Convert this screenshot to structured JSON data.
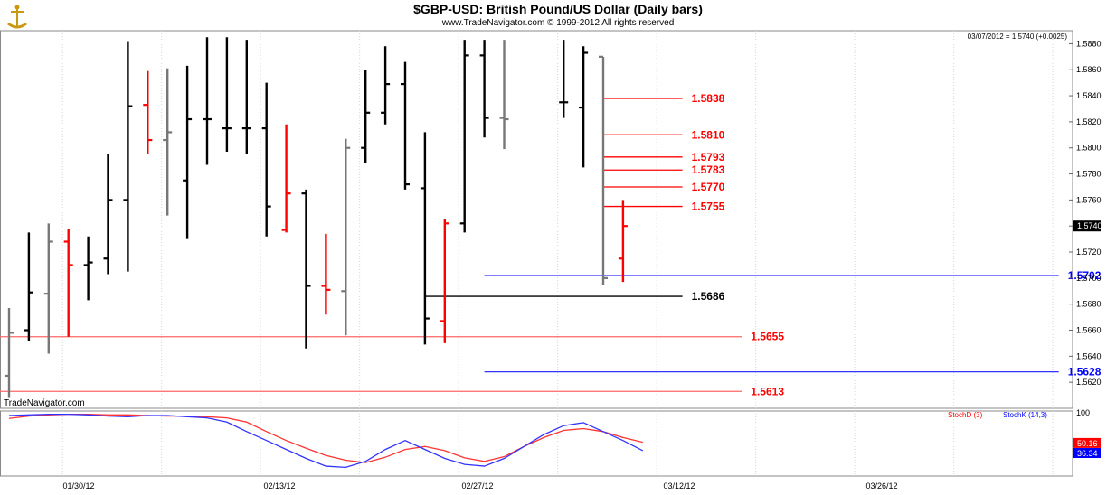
{
  "header": {
    "title": "$GBP-USD:  British Pound/US Dollar  (Daily bars)",
    "copyright": "www.TradeNavigator.com © 1999-2012 All rights reserved",
    "last_value_note": "03/07/2012 = 1.5740 (+0.0025)",
    "watermark": "TradeNavigator.com"
  },
  "chart_data": [
    {
      "type": "ohlc",
      "title": "$GBP-USD:  British Pound/US Dollar  (Daily bars)",
      "ylim": [
        1.56,
        1.589
      ],
      "y_ticks": [
        "1.5880",
        "1.5860",
        "1.5840",
        "1.5820",
        "1.5800",
        "1.5780",
        "1.5760",
        "1.5740",
        "1.5720",
        "1.5700",
        "1.5680",
        "1.5660",
        "1.5640",
        "1.5620"
      ],
      "current_price_label": "1.5740",
      "x_ticks": [
        "01/30/12",
        "02/13/12",
        "02/27/12",
        "03/12/12",
        "03/26/12"
      ],
      "bars": [
        {
          "x": 0,
          "o": 1.5625,
          "h": 1.5677,
          "l": 1.5608,
          "c": 1.5658,
          "color": "gray"
        },
        {
          "x": 1,
          "o": 1.566,
          "h": 1.5735,
          "l": 1.5652,
          "c": 1.5689,
          "color": "black"
        },
        {
          "x": 2,
          "o": 1.5688,
          "h": 1.5742,
          "l": 1.5642,
          "c": 1.5728,
          "color": "gray"
        },
        {
          "x": 3,
          "o": 1.5728,
          "h": 1.5738,
          "l": 1.5655,
          "c": 1.571,
          "color": "red"
        },
        {
          "x": 4,
          "o": 1.571,
          "h": 1.5732,
          "l": 1.5683,
          "c": 1.5712,
          "color": "black"
        },
        {
          "x": 5,
          "o": 1.5715,
          "h": 1.5795,
          "l": 1.5703,
          "c": 1.576,
          "color": "black"
        },
        {
          "x": 6,
          "o": 1.576,
          "h": 1.5882,
          "l": 1.5705,
          "c": 1.5832,
          "color": "black"
        },
        {
          "x": 7,
          "o": 1.5833,
          "h": 1.5859,
          "l": 1.5795,
          "c": 1.5806,
          "color": "red"
        },
        {
          "x": 8,
          "o": 1.5806,
          "h": 1.5861,
          "l": 1.5748,
          "c": 1.5812,
          "color": "gray"
        },
        {
          "x": 9,
          "o": 1.5775,
          "h": 1.5863,
          "l": 1.573,
          "c": 1.5822,
          "color": "black"
        },
        {
          "x": 10,
          "o": 1.5822,
          "h": 1.5885,
          "l": 1.5787,
          "c": 1.5822,
          "color": "black"
        },
        {
          "x": 11,
          "o": 1.5815,
          "h": 1.5885,
          "l": 1.5797,
          "c": 1.5815,
          "color": "black"
        },
        {
          "x": 12,
          "o": 1.5815,
          "h": 1.5883,
          "l": 1.5795,
          "c": 1.5815,
          "color": "black"
        },
        {
          "x": 13,
          "o": 1.5815,
          "h": 1.585,
          "l": 1.5732,
          "c": 1.5755,
          "color": "black"
        },
        {
          "x": 14,
          "o": 1.5737,
          "h": 1.5818,
          "l": 1.5735,
          "c": 1.5765,
          "color": "red"
        },
        {
          "x": 15,
          "o": 1.5765,
          "h": 1.5768,
          "l": 1.5646,
          "c": 1.5694,
          "color": "black"
        },
        {
          "x": 16,
          "o": 1.5694,
          "h": 1.5734,
          "l": 1.5672,
          "c": 1.5691,
          "color": "red"
        },
        {
          "x": 17,
          "o": 1.569,
          "h": 1.5807,
          "l": 1.5656,
          "c": 1.58,
          "color": "gray"
        },
        {
          "x": 18,
          "o": 1.58,
          "h": 1.586,
          "l": 1.5788,
          "c": 1.5827,
          "color": "black"
        },
        {
          "x": 19,
          "o": 1.5827,
          "h": 1.5878,
          "l": 1.5818,
          "c": 1.5849,
          "color": "black"
        },
        {
          "x": 20,
          "o": 1.5849,
          "h": 1.5866,
          "l": 1.5768,
          "c": 1.5772,
          "color": "black"
        },
        {
          "x": 21,
          "o": 1.5769,
          "h": 1.5812,
          "l": 1.5649,
          "c": 1.5669,
          "color": "black"
        },
        {
          "x": 22,
          "o": 1.5667,
          "h": 1.5745,
          "l": 1.565,
          "c": 1.5742,
          "color": "red"
        },
        {
          "x": 23,
          "o": 1.5742,
          "h": 1.5883,
          "l": 1.5735,
          "c": 1.5871,
          "color": "black"
        },
        {
          "x": 24,
          "o": 1.5871,
          "h": 1.5883,
          "l": 1.5808,
          "c": 1.5823,
          "color": "black"
        },
        {
          "x": 25,
          "o": 1.5823,
          "h": 1.5883,
          "l": 1.5799,
          "c": 1.5822,
          "color": "gray"
        },
        {
          "x": 28,
          "o": 1.5835,
          "h": 1.5883,
          "l": 1.5823,
          "c": 1.5835,
          "color": "black"
        },
        {
          "x": 29,
          "o": 1.5831,
          "h": 1.5878,
          "l": 1.5785,
          "c": 1.5873,
          "color": "black"
        },
        {
          "x": 30,
          "o": 1.587,
          "h": 1.587,
          "l": 1.5695,
          "c": 1.57,
          "color": "gray"
        },
        {
          "x": 31,
          "o": 1.5715,
          "h": 1.576,
          "l": 1.5697,
          "c": 1.574,
          "color": "red"
        }
      ],
      "levels": [
        {
          "value": "1.5838",
          "y": 1.5838,
          "x_from": 30,
          "x_to": 34,
          "color": "#ff0000",
          "label_color": "#ff0000"
        },
        {
          "value": "1.5810",
          "y": 1.581,
          "x_from": 30,
          "x_to": 34,
          "color": "#ff0000",
          "label_color": "#ff0000"
        },
        {
          "value": "1.5793",
          "y": 1.5793,
          "x_from": 30,
          "x_to": 34,
          "color": "#ff0000",
          "label_color": "#ff0000"
        },
        {
          "value": "1.5783",
          "y": 1.5783,
          "x_from": 30,
          "x_to": 34,
          "color": "#ff0000",
          "label_color": "#ff0000"
        },
        {
          "value": "1.5770",
          "y": 1.577,
          "x_from": 30,
          "x_to": 34,
          "color": "#ff0000",
          "label_color": "#ff0000"
        },
        {
          "value": "1.5755",
          "y": 1.5755,
          "x_from": 30,
          "x_to": 34,
          "color": "#ff0000",
          "label_color": "#ff0000"
        },
        {
          "value": "1.5702",
          "y": 1.5702,
          "x_from": 24,
          "x_to": 53,
          "color": "#3333ff",
          "label_color": "#0000ff"
        },
        {
          "value": "1.5686",
          "y": 1.5686,
          "x_from": 21,
          "x_to": 34,
          "color": "#000000",
          "label_color": "#000000"
        },
        {
          "value": "1.5655",
          "y": 1.5655,
          "x_from": -1,
          "x_to": 37,
          "color": "#ff6666",
          "label_color": "#ff0000"
        },
        {
          "value": "1.5628",
          "y": 1.5628,
          "x_from": 24,
          "x_to": 53,
          "color": "#3333ff",
          "label_color": "#0000ff"
        },
        {
          "value": "1.5613",
          "y": 1.5613,
          "x_from": -1,
          "x_to": 37,
          "color": "#ff6666",
          "label_color": "#ff0000"
        }
      ]
    },
    {
      "type": "line",
      "ylim": [
        0,
        100
      ],
      "y_ticks": [
        "100"
      ],
      "legend": [
        "StochD (3)",
        "StochK (14,3)"
      ],
      "last_values": {
        "stochD": "50.16",
        "stochK": "36.34"
      },
      "series": [
        {
          "name": "StochD (3)",
          "color": "#ff3333",
          "values": [
            92,
            96,
            98,
            99,
            99,
            98,
            98,
            97,
            96,
            96,
            95,
            93,
            86,
            70,
            55,
            42,
            30,
            22,
            18,
            27,
            40,
            45,
            38,
            26,
            20,
            28,
            45,
            60,
            72,
            75,
            70,
            60,
            52
          ]
        },
        {
          "name": "StochK (14,3)",
          "color": "#3333ff",
          "values": [
            97,
            98,
            99,
            99,
            98,
            96,
            95,
            97,
            97,
            95,
            93,
            86,
            70,
            55,
            40,
            25,
            12,
            10,
            20,
            40,
            55,
            40,
            25,
            15,
            12,
            25,
            45,
            65,
            80,
            85,
            70,
            55,
            38
          ]
        }
      ]
    }
  ]
}
